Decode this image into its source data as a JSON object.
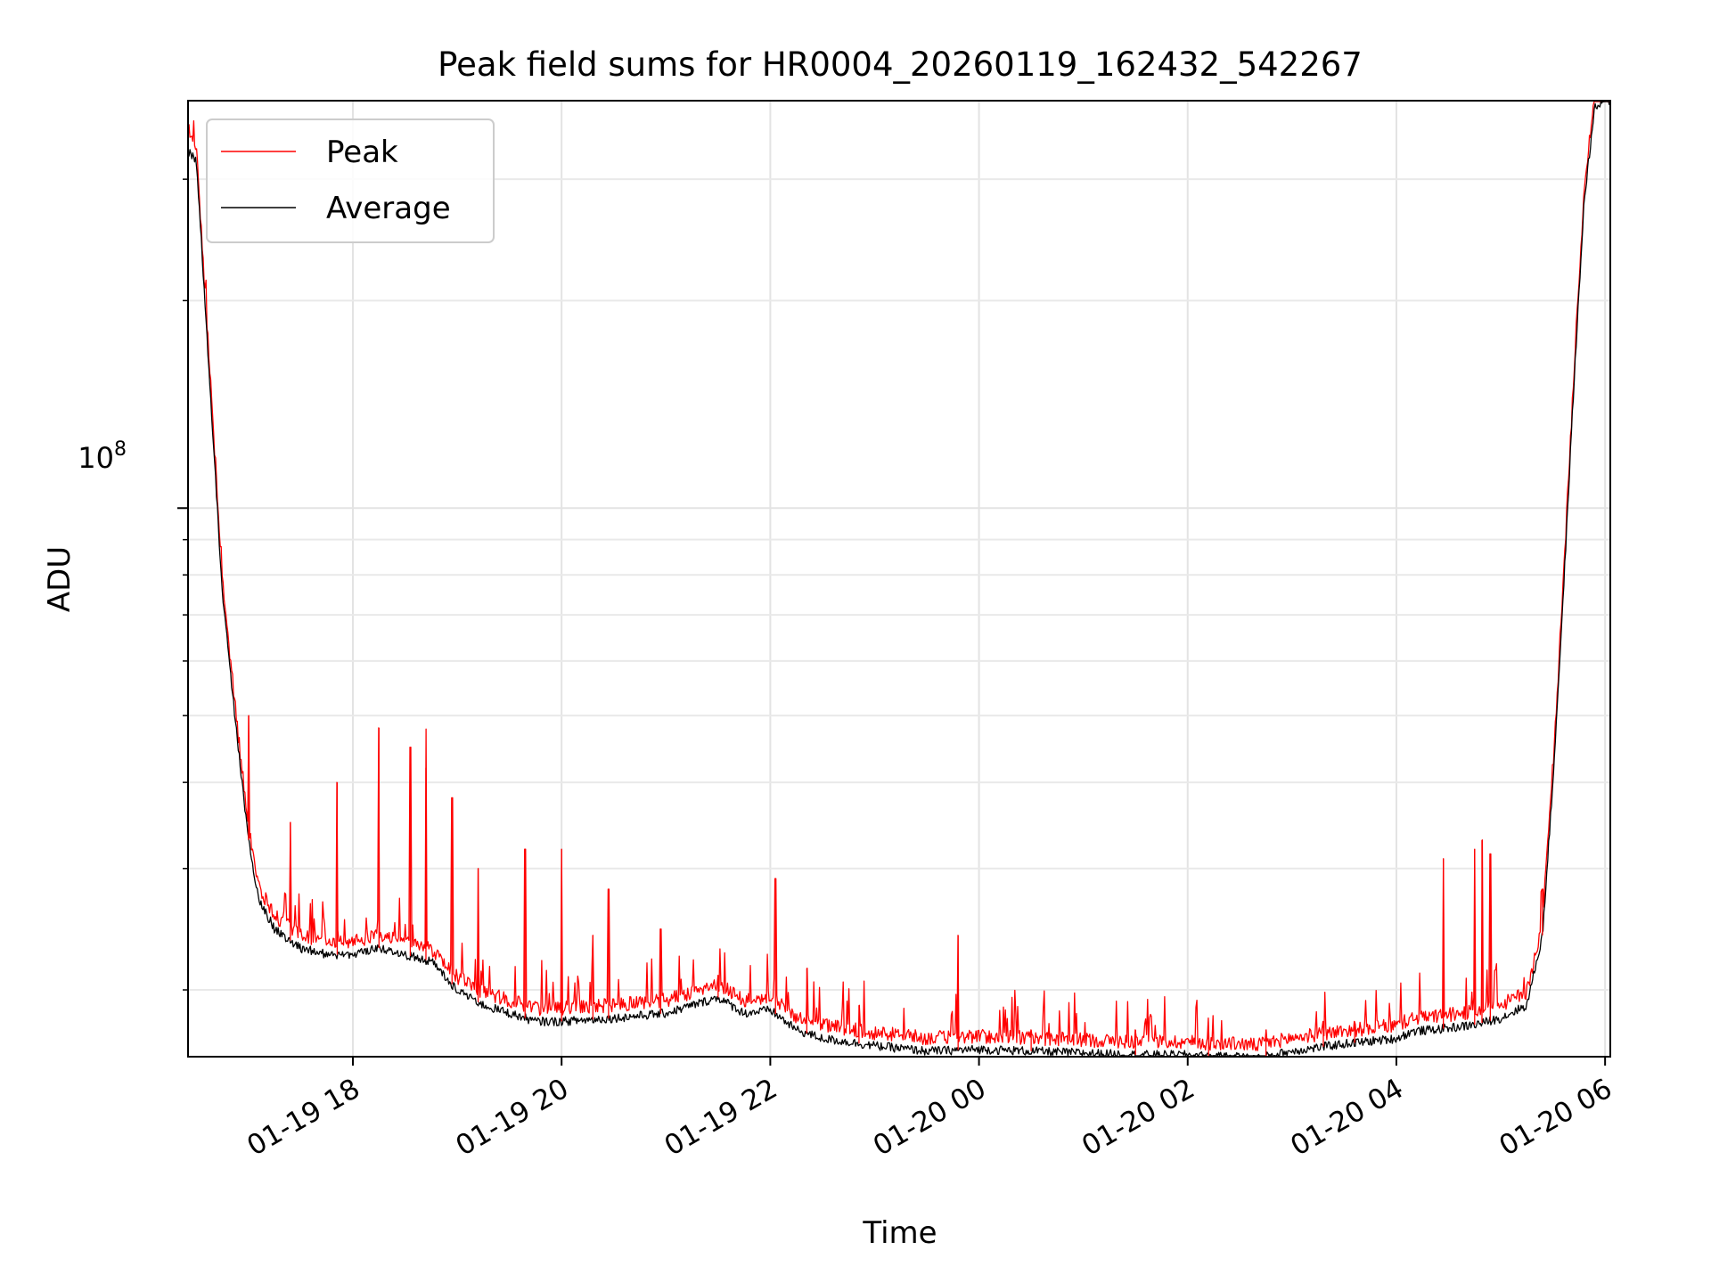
{
  "chart_data": {
    "type": "line",
    "title": "Peak field sums for HR0004_20260119_162432_542267",
    "xlabel": "Time",
    "ylabel": "ADU",
    "yscale": "log",
    "y_major_tick_label": {
      "base": "10",
      "exponent": "8",
      "value": 100000000
    },
    "grid": true,
    "legend_position": "upper-left",
    "x_tick_labels": [
      "01-19 18",
      "01-19 20",
      "01-19 22",
      "01-20 00",
      "01-20 02",
      "01-20 04",
      "01-20 06"
    ],
    "x_tick_hours": [
      18,
      20,
      22,
      24,
      26,
      28,
      30
    ],
    "xlim_hours": [
      16.42,
      30.05
    ],
    "ylim": [
      16000000,
      390000000
    ],
    "y_minor_ticks": [
      20000000,
      30000000,
      40000000,
      50000000,
      60000000,
      70000000,
      80000000,
      90000000,
      200000000,
      300000000
    ],
    "series": [
      {
        "name": "Average",
        "color": "#000000",
        "x_hours": [
          16.42,
          16.5,
          16.6,
          16.75,
          16.9,
          17.0,
          17.1,
          17.25,
          17.5,
          17.75,
          18.0,
          18.25,
          18.5,
          18.75,
          19.0,
          19.25,
          19.5,
          19.75,
          20.0,
          20.5,
          21.0,
          21.5,
          21.75,
          22.0,
          22.25,
          22.5,
          22.75,
          23.0,
          23.5,
          24.0,
          24.5,
          25.0,
          25.5,
          26.0,
          26.25,
          26.5,
          26.65,
          27.0,
          27.5,
          28.0,
          28.15,
          28.5,
          28.75,
          29.0,
          29.25,
          29.4,
          29.5,
          29.6,
          29.7,
          29.8,
          29.9,
          30.0
        ],
        "values": [
          330000000,
          320000000,
          180000000,
          75000000,
          45000000,
          33000000,
          27000000,
          24500000,
          23000000,
          22500000,
          22500000,
          23000000,
          22500000,
          22000000,
          20000000,
          19000000,
          18500000,
          18000000,
          18000000,
          18200000,
          18500000,
          19500000,
          18500000,
          18700000,
          17500000,
          17000000,
          16800000,
          16600000,
          16300000,
          16400000,
          16300000,
          16200000,
          16100000,
          16100000,
          16000000,
          16000000,
          15900000,
          16300000,
          16700000,
          17000000,
          17400000,
          17600000,
          17800000,
          18200000,
          19000000,
          24000000,
          40000000,
          75000000,
          150000000,
          280000000,
          380000000,
          390000000
        ]
      },
      {
        "name": "Peak",
        "color": "#ff0000",
        "x_hours": [
          17.0,
          17.4,
          17.85,
          18.25,
          18.55,
          18.7,
          18.95,
          19.2,
          19.65,
          20.0,
          20.3,
          20.45,
          20.95,
          21.5,
          22.05,
          22.35,
          22.85,
          23.8,
          24.5,
          25.5,
          26.2,
          26.75,
          27.3,
          27.6,
          28.45,
          28.75,
          28.82,
          28.9,
          29.4
        ],
        "values": [
          50000000,
          35000000,
          40000000,
          48000000,
          45000000,
          42000000,
          38000000,
          30000000,
          32000000,
          32000000,
          24000000,
          28000000,
          24500000,
          21000000,
          29000000,
          21500000,
          19000000,
          24000000,
          17500000,
          17500000,
          17300000,
          17500000,
          18000000,
          18000000,
          31000000,
          32000000,
          33000000,
          31500000,
          28000000
        ]
      }
    ]
  }
}
